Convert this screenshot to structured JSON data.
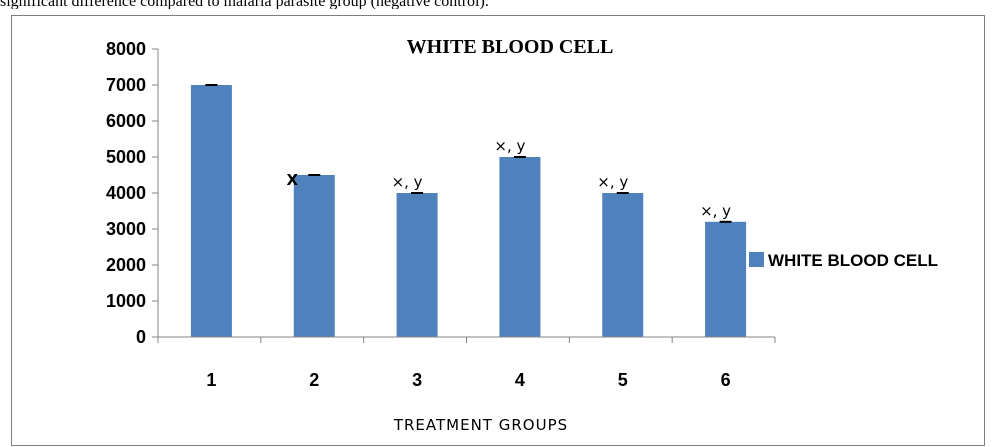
{
  "caption": "significant difference compared to malaria parasite group (negative control).",
  "chart_data": {
    "type": "bar",
    "title": "WHITE BLOOD CELL",
    "xlabel": "TREATMENT GROUPS",
    "ylabel": "",
    "categories": [
      "1",
      "2",
      "3",
      "4",
      "5",
      "6"
    ],
    "series": [
      {
        "name": "WHITE BLOOD CELL",
        "values": [
          7000,
          4500,
          4000,
          5000,
          4000,
          3200
        ]
      }
    ],
    "annotations": [
      "",
      "X",
      "×, y",
      "×, y",
      "×, y",
      "×, y"
    ],
    "ylim": [
      0,
      8000
    ],
    "yticks": [
      0,
      1000,
      2000,
      3000,
      4000,
      5000,
      6000,
      7000,
      8000
    ],
    "grid": false,
    "legend": "right",
    "error_bars": true
  },
  "colors": {
    "bar": "#4f81bd",
    "axis": "#868686",
    "error": "#000000"
  }
}
